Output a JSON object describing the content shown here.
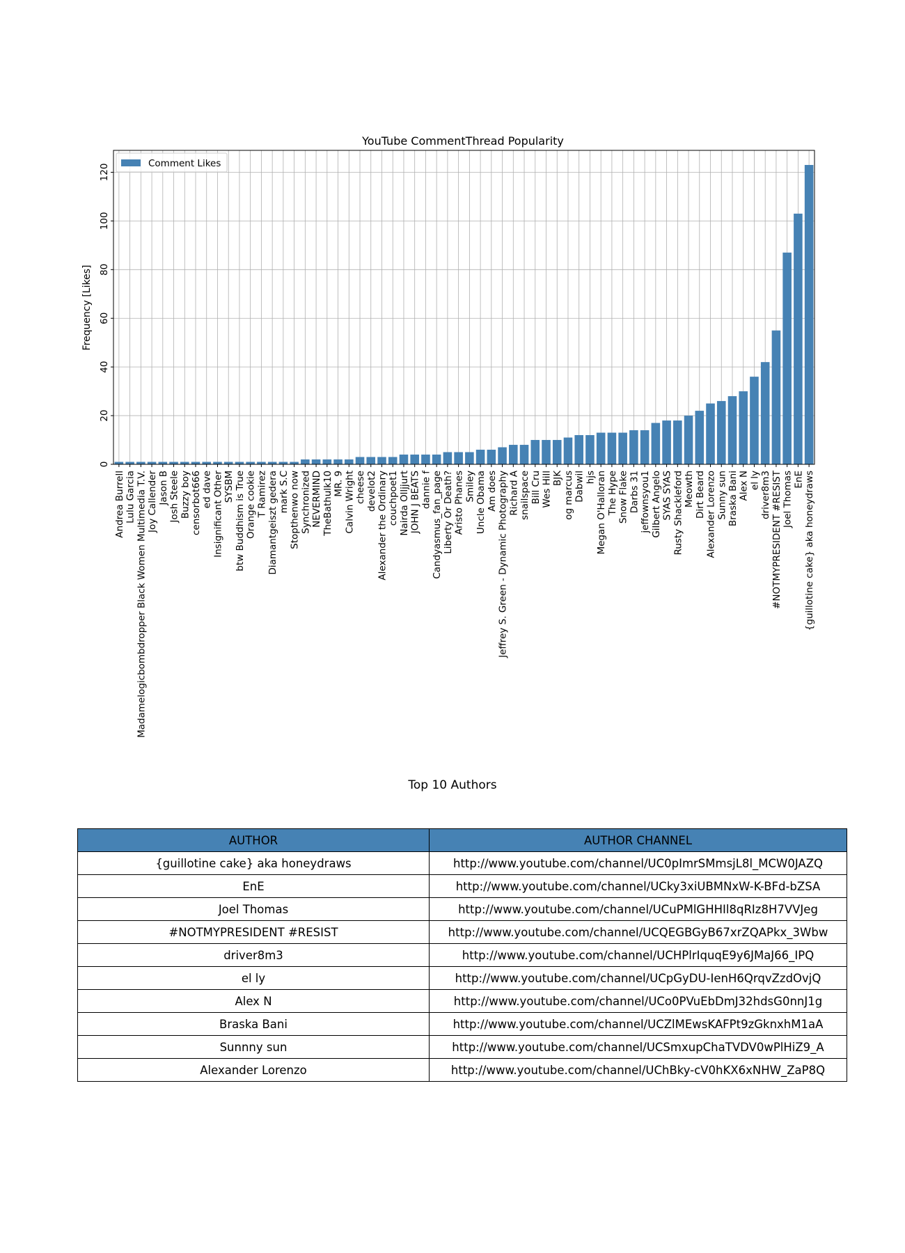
{
  "chart_data": {
    "type": "bar",
    "title": "YouTube CommentThread Popularity",
    "ylabel": "Frequency [Likes]",
    "xlabel": "",
    "legend": [
      "Comment Likes"
    ],
    "legend_position": "top-left",
    "grid": true,
    "ylim": [
      0,
      129
    ],
    "yticks": [
      0,
      20,
      40,
      60,
      80,
      100,
      120
    ],
    "bar_color": "#4682b4",
    "categories": [
      "Andrea Burrell",
      "Lulu Garcia",
      "Madamelogicbombdropper Black Women Multimedia T.V.",
      "Joy Callender",
      "Jason B",
      "Josh Steele",
      "Buzzy boy",
      "censorbot666",
      "ed dave",
      "Insignificant Other",
      "SYSBM",
      "btw Buddhism is True",
      "Orange cookie",
      "T Ramirez",
      "Diamantgeiszt gedera",
      "mark S.C",
      "Stopthenwo now",
      "Synchronized",
      "NEVERMIND",
      "TheBathulk10",
      "MR. 9",
      "Calvin Wright",
      "cheese",
      "develot2",
      "Alexander the Ordinary",
      "couchpoet1",
      "Nairda Olljjurt",
      "JOHN J BEATS",
      "dannie f",
      "Candyasmus_fan_page",
      "Liberty Or Death?",
      "Aristo Phanes",
      "Smiley",
      "Uncle Obama",
      "Am does",
      "Jeffrey S. Green - Dynamic Photography",
      "Richard A",
      "snailspace",
      "Bill Cru",
      "Wes Hill",
      "BJK",
      "og marcus",
      "Dabwil",
      "hjs",
      "Megan O'Halloran",
      "The Hype",
      "Snow Flake",
      "Darbs 31",
      "jeffownsyou1",
      "Gilbert Angelo",
      "SYAS SYAS",
      "Rusty Shackleford",
      "Meowth",
      "Dirt Beard",
      "Alexander Lorenzo",
      "Sunny sun",
      "Braska Bani",
      "Alex N",
      "el ly",
      "driver8m3",
      "#NOTMYPRESIDENT #RESIST",
      "Joel Thomas",
      "EnE",
      "{guillotine cake} aka honeydraws"
    ],
    "values": [
      1,
      1,
      1,
      1,
      1,
      1,
      1,
      1,
      1,
      1,
      1,
      1,
      1,
      1,
      1,
      1,
      1,
      2,
      2,
      2,
      2,
      2,
      3,
      3,
      3,
      3,
      4,
      4,
      4,
      4,
      5,
      5,
      5,
      6,
      6,
      7,
      8,
      8,
      10,
      10,
      10,
      11,
      12,
      12,
      13,
      13,
      13,
      14,
      14,
      17,
      18,
      18,
      20,
      22,
      25,
      26,
      28,
      30,
      36,
      42,
      55,
      87,
      103,
      123
    ]
  },
  "table": {
    "title": "Top 10 Authors",
    "header_color": "#4682b4",
    "headers": [
      "AUTHOR",
      "AUTHOR CHANNEL"
    ],
    "rows": [
      [
        "{guillotine cake} aka honeydraws",
        "http://www.youtube.com/channel/UC0pImrSMmsjL8l_MCW0JAZQ"
      ],
      [
        "EnE",
        "http://www.youtube.com/channel/UCky3xiUBMNxW-K-BFd-bZSA"
      ],
      [
        "Joel Thomas",
        "http://www.youtube.com/channel/UCuPMlGHHIl8qRIz8H7VVJeg"
      ],
      [
        "#NOTMYPRESIDENT #RESIST",
        "http://www.youtube.com/channel/UCQEGBGyB67xrZQAPkx_3Wbw"
      ],
      [
        "driver8m3",
        "http://www.youtube.com/channel/UCHPlrIquqE9y6JMaJ66_IPQ"
      ],
      [
        "el ly",
        "http://www.youtube.com/channel/UCpGyDU-IenH6QrqvZzdOvjQ"
      ],
      [
        "Alex N",
        "http://www.youtube.com/channel/UCo0PVuEbDmJ32hdsG0nnJ1g"
      ],
      [
        "Braska Bani",
        "http://www.youtube.com/channel/UCZlMEwsKAFPt9zGknxhM1aA"
      ],
      [
        "Sunnny sun",
        "http://www.youtube.com/channel/UCSmxupChaTVDV0wPlHiZ9_A"
      ],
      [
        "Alexander Lorenzo",
        "http://www.youtube.com/channel/UChBky-cV0hKX6xNHW_ZaP8Q"
      ]
    ]
  }
}
